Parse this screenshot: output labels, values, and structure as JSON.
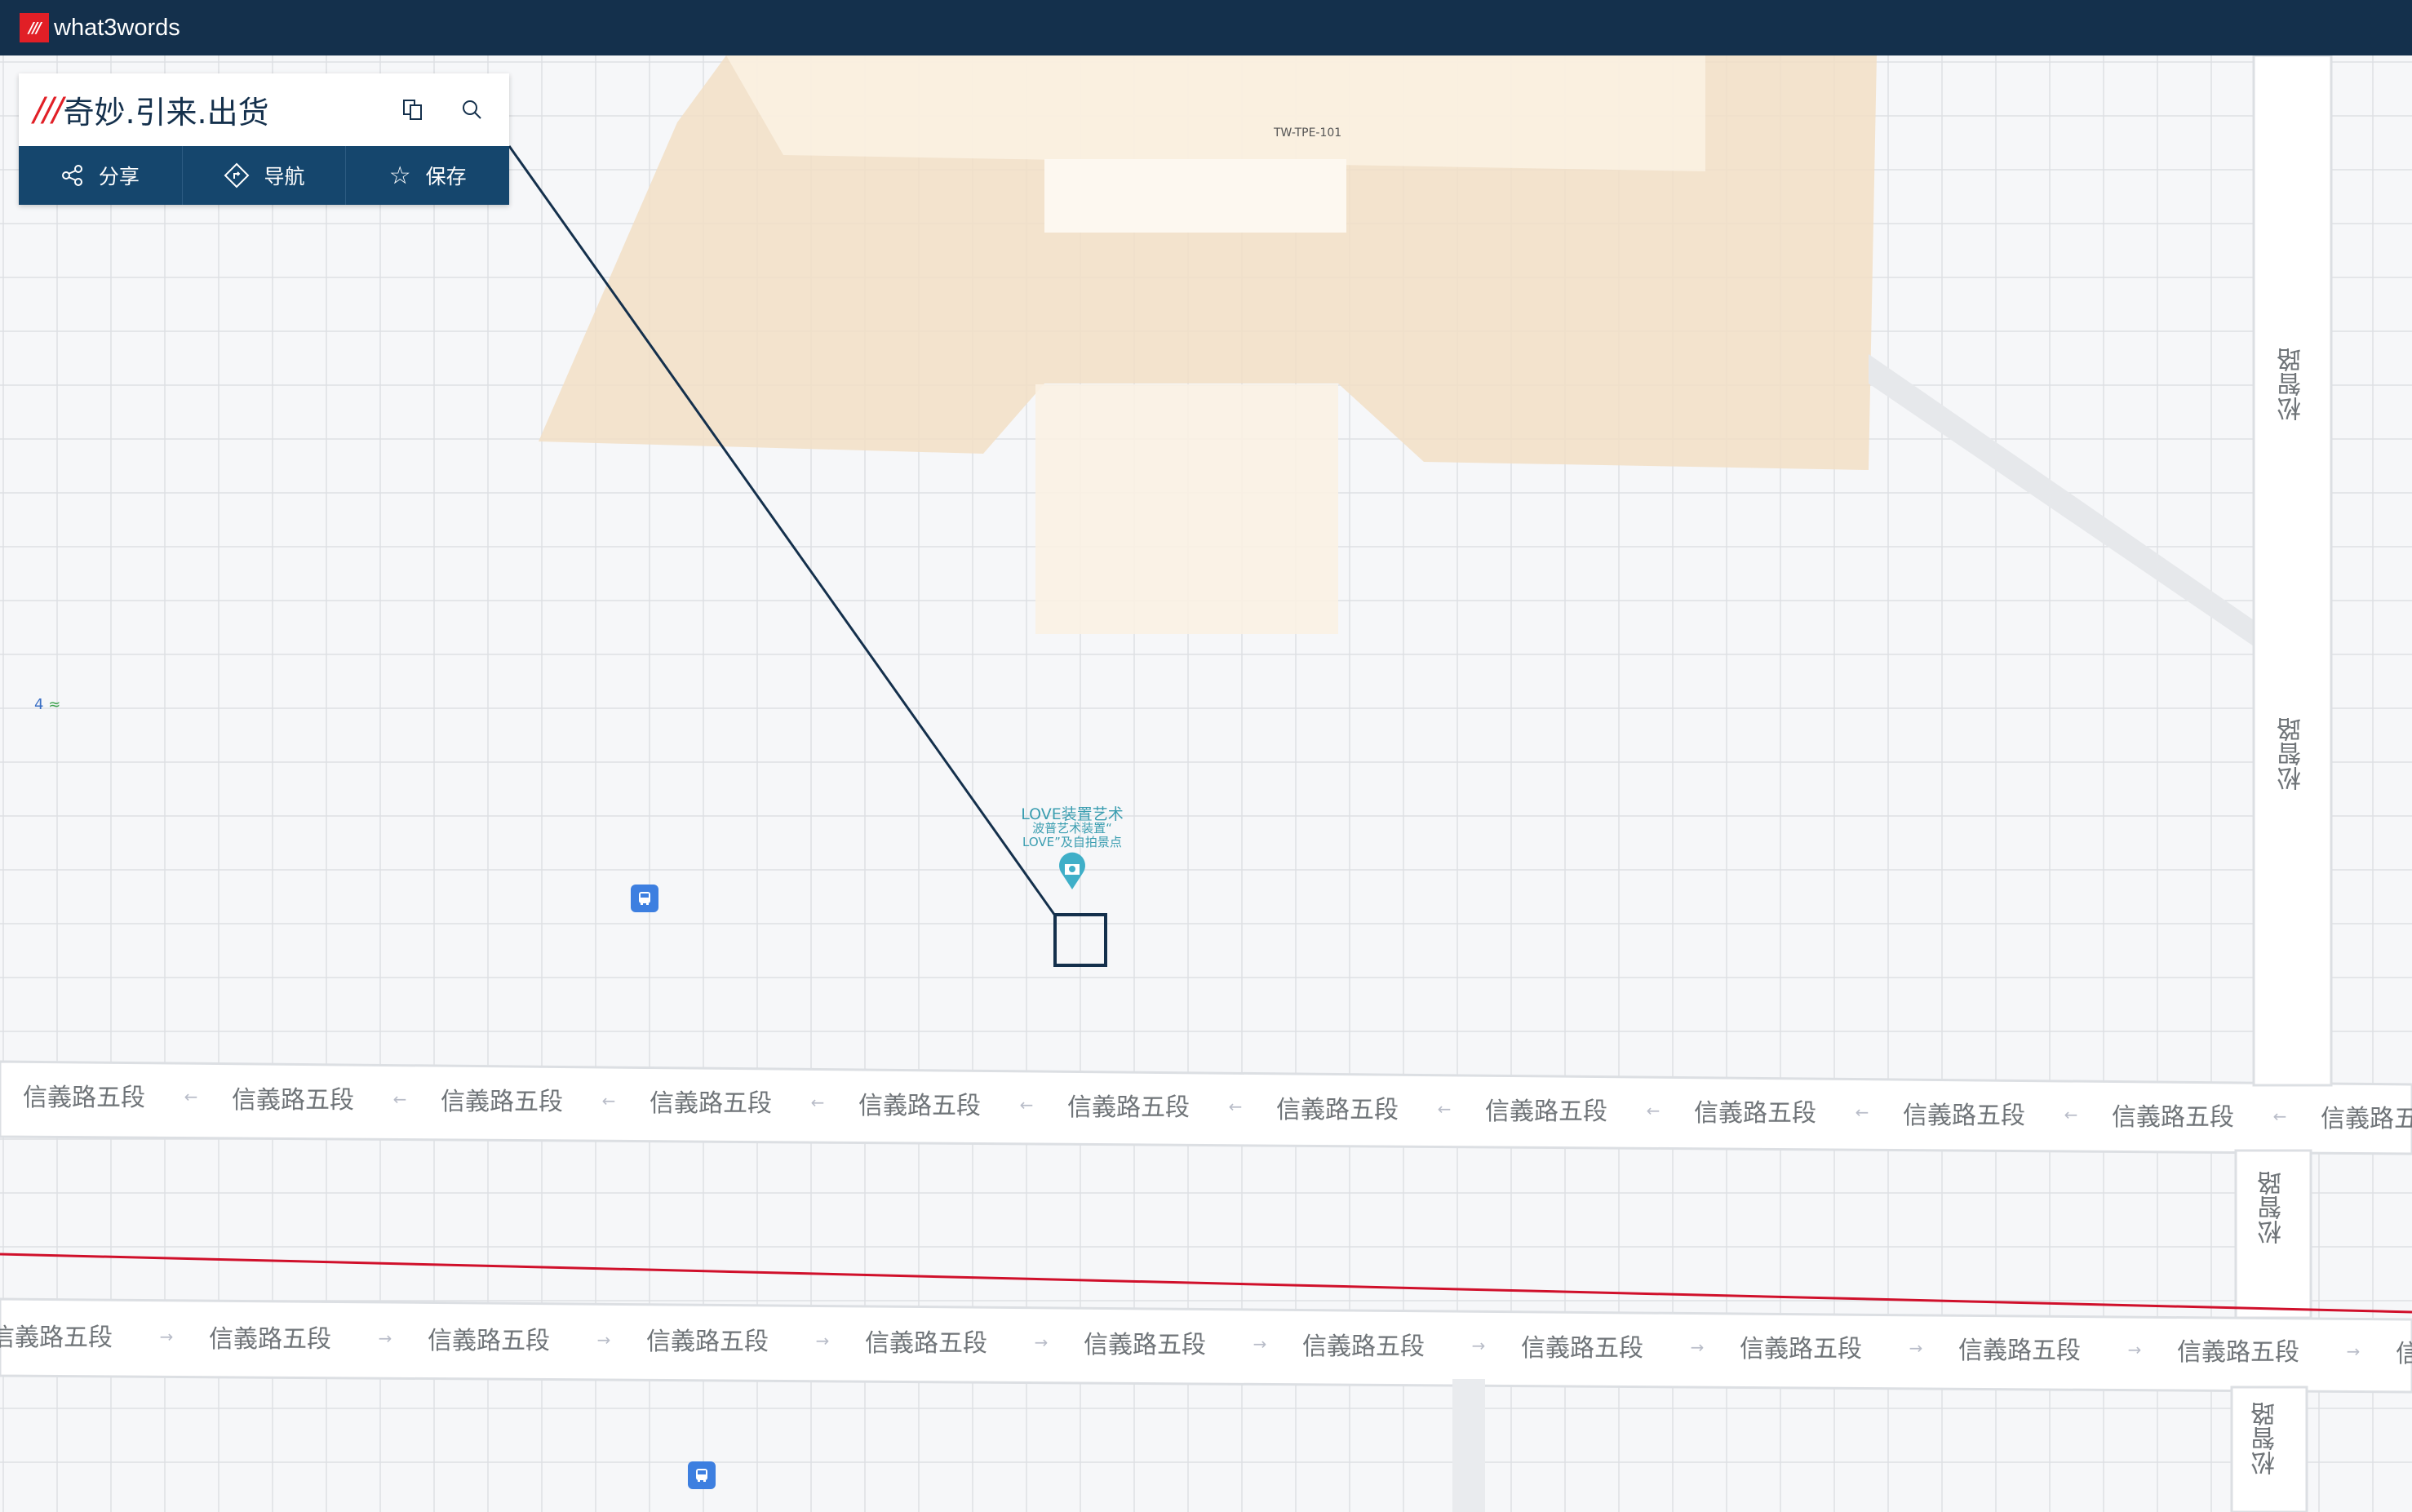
{
  "header": {
    "brand": "what3words",
    "logo": "///"
  },
  "card": {
    "slashes": "///",
    "address": "奇妙.引来.出货",
    "copy_icon": "copy-icon",
    "search_icon": "search-icon",
    "buttons": [
      {
        "label": "分享",
        "icon": "share-icon"
      },
      {
        "label": "导航",
        "icon": "navigate-icon"
      },
      {
        "label": "保存",
        "icon": "star-icon"
      }
    ]
  },
  "map": {
    "poi": {
      "title": "LOVE装置艺术",
      "line2": "波普艺术装置“",
      "line3": "LOVE”及自拍景点",
      "color": "#3fafc8"
    },
    "building_label": "TW-TPE-101",
    "transit_label": "4",
    "upper_road_labels": [
      "信義路五段",
      "信義路五段",
      "信義路五段",
      "信義路五段",
      "信義路五段",
      "信義路五段",
      "信義路五段",
      "信義路五段",
      "信義路五段",
      "信義路五段",
      "信義路五段",
      "信義路五"
    ],
    "lower_road_labels": [
      "信義路五段",
      "信義路五段",
      "信義路五段",
      "信義路五段",
      "信義路五段",
      "信義路五段",
      "信義路五段",
      "信義路五段",
      "信義路五段",
      "信義路五段",
      "信義路五段",
      "信"
    ],
    "side_road_labels": [
      "松智路",
      "松智路",
      "松智路",
      "松智路"
    ],
    "colors": {
      "accent": "#e11f26",
      "navy": "#14304c",
      "button_bar": "#15466d",
      "building": "#f2dfc6"
    }
  }
}
